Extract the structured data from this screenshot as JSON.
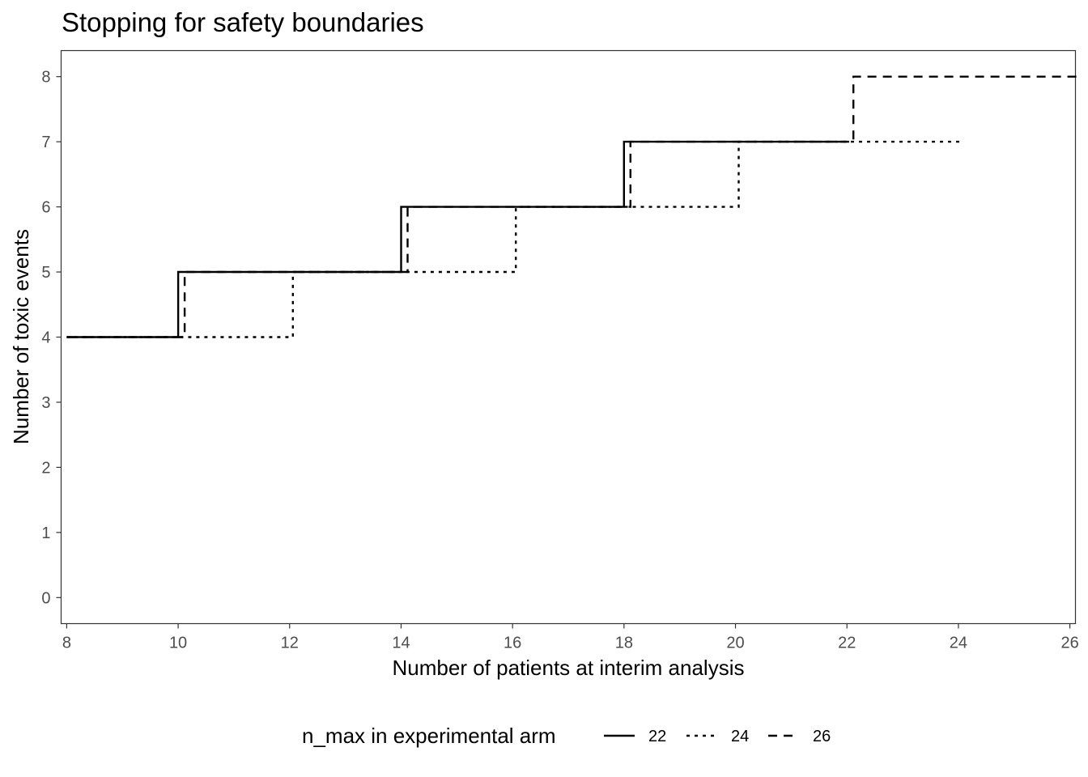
{
  "chart_data": {
    "type": "line",
    "step": true,
    "title": "Stopping for safety boundaries",
    "xlabel": "Number of patients at interim analysis",
    "ylabel": "Number of toxic events",
    "xlim": [
      7.9,
      26.1
    ],
    "ylim": [
      -0.4,
      8.4
    ],
    "x_ticks": [
      8,
      10,
      12,
      14,
      16,
      18,
      20,
      22,
      24,
      26
    ],
    "y_ticks": [
      0,
      1,
      2,
      3,
      4,
      5,
      6,
      7,
      8
    ],
    "grid": false,
    "legend": {
      "title": "n_max in experimental arm",
      "position": "bottom",
      "entries": [
        "22",
        "24",
        "26"
      ]
    },
    "series": [
      {
        "name": "22",
        "linestyle": "solid",
        "x": [
          8,
          9,
          10,
          11,
          12,
          13,
          14,
          15,
          16,
          17,
          18,
          19,
          20,
          21,
          22
        ],
        "y": [
          4,
          4,
          5,
          5,
          5,
          5,
          6,
          6,
          6,
          6,
          7,
          7,
          7,
          7,
          7
        ]
      },
      {
        "name": "24",
        "linestyle": "dotted",
        "x": [
          8,
          9,
          10,
          11,
          12,
          13,
          14,
          15,
          16,
          17,
          18,
          19,
          20,
          21,
          22,
          23,
          24
        ],
        "y": [
          4,
          4,
          4,
          4,
          5,
          5,
          5,
          5,
          6,
          6,
          6,
          6,
          7,
          7,
          7,
          7,
          7
        ]
      },
      {
        "name": "26",
        "linestyle": "dashed",
        "x": [
          8,
          9,
          10,
          11,
          12,
          13,
          14,
          15,
          16,
          17,
          18,
          19,
          20,
          21,
          22,
          23,
          24,
          25,
          26
        ],
        "y": [
          4,
          4,
          5,
          5,
          5,
          5,
          6,
          6,
          6,
          6,
          7,
          7,
          7,
          7,
          8,
          8,
          8,
          8,
          8
        ]
      }
    ],
    "colors": {
      "line": "#000000",
      "panel_border": "#333333",
      "tick_text": "#4d4d4d"
    }
  }
}
